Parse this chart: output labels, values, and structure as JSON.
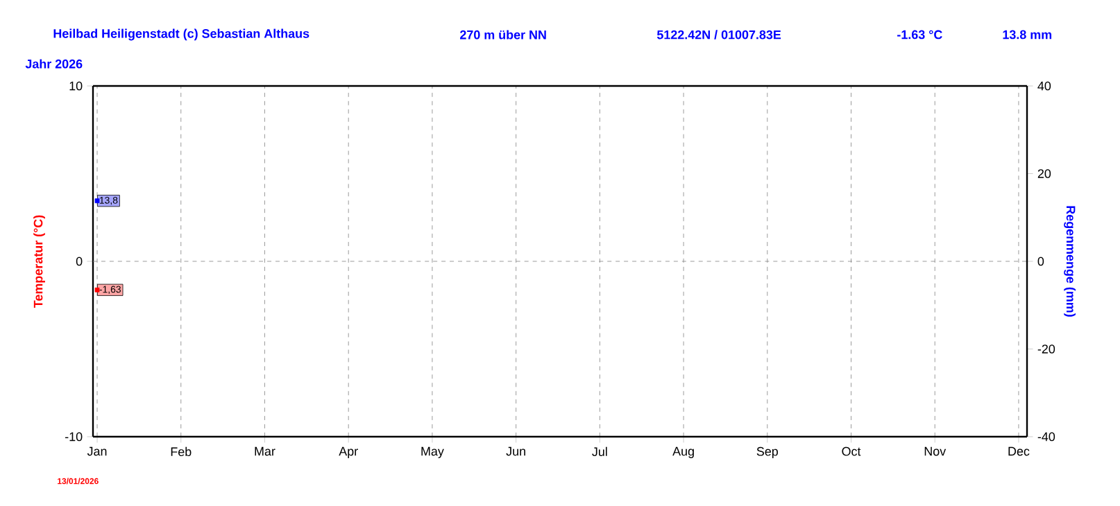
{
  "chart_data": {
    "type": "line",
    "title": "Heilbad Heiligenstadt (c) Sebastian Althaus",
    "subtitle": "Jahr  2026",
    "ylabel": "Temperatur  (°C)",
    "y2label": "Regenmenge  (mm)",
    "annotations": [
      "270 m über NN",
      "5122.42N / 01007.83E",
      "-1.63 °C",
      "13.8 mm",
      "13/01/2026"
    ],
    "categories": [
      "Jan",
      "Feb",
      "Mar",
      "Apr",
      "May",
      "Jun",
      "Jul",
      "Aug",
      "Sep",
      "Oct",
      "Nov",
      "Dec"
    ],
    "series": [
      {
        "axis": "y",
        "color": "#ff0000",
        "values": [
          -1.63,
          null,
          null,
          null,
          null,
          null,
          null,
          null,
          null,
          null,
          null,
          null
        ],
        "value_labels": [
          "-1,63",
          null,
          null,
          null,
          null,
          null,
          null,
          null,
          null,
          null,
          null,
          null
        ]
      },
      {
        "axis": "y2",
        "color": "#0000ff",
        "values": [
          13.8,
          null,
          null,
          null,
          null,
          null,
          null,
          null,
          null,
          null,
          null,
          null
        ],
        "value_labels": [
          "13,8",
          null,
          null,
          null,
          null,
          null,
          null,
          null,
          null,
          null,
          null,
          null
        ]
      }
    ],
    "ylim": [
      -10,
      10
    ],
    "yticks": [
      -10,
      0,
      10
    ],
    "y2lim": [
      -40,
      40
    ],
    "y2ticks": [
      -40,
      -20,
      0,
      20,
      40
    ],
    "grid": "x",
    "marker": "square",
    "ref_lines": [
      {
        "axis": "y",
        "value": 0,
        "color": "#808080",
        "line_style": "dashed"
      }
    ]
  }
}
